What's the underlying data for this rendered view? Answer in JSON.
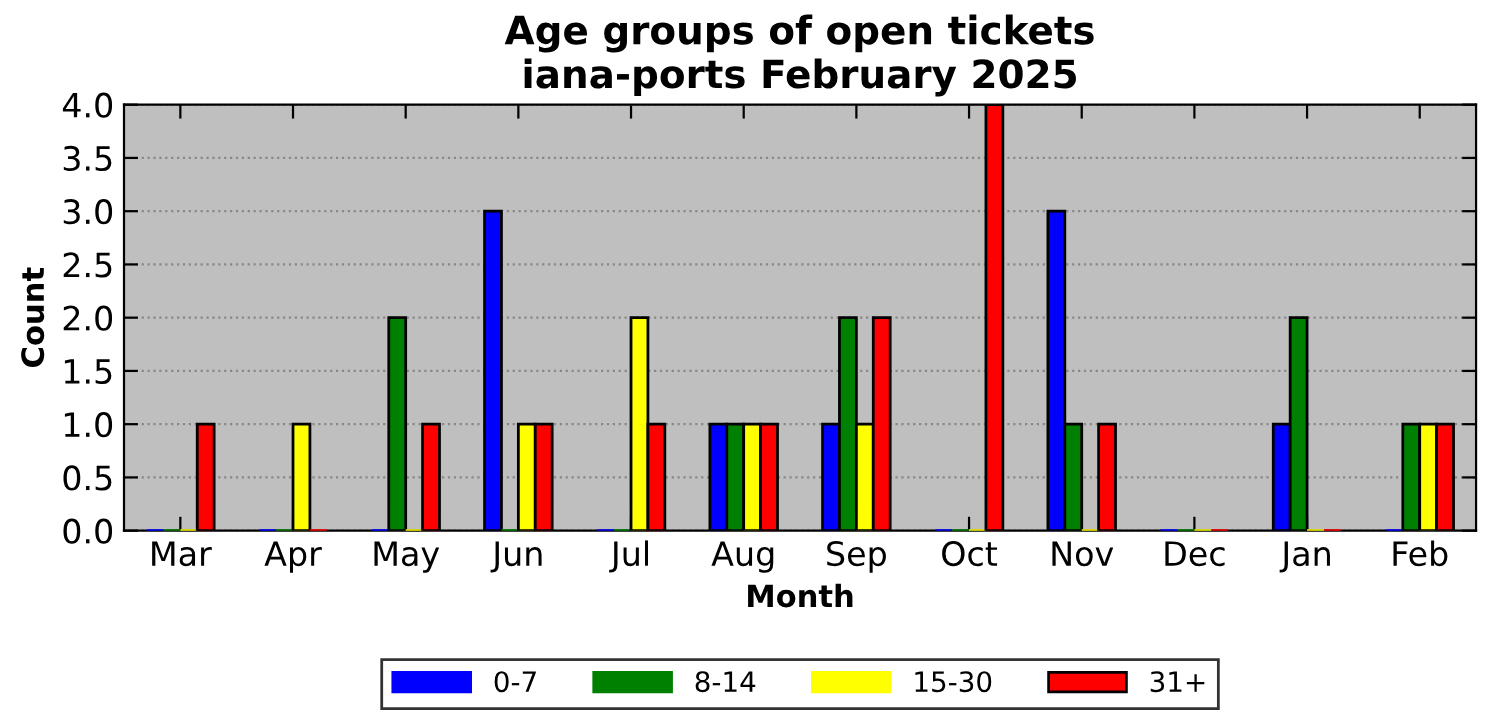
{
  "chart_data": {
    "type": "bar",
    "title": "Age groups of open tickets\niana-ports February 2025",
    "xlabel": "Month",
    "ylabel": "Count",
    "categories": [
      "Mar",
      "Apr",
      "May",
      "Jun",
      "Jul",
      "Aug",
      "Sep",
      "Oct",
      "Nov",
      "Dec",
      "Jan",
      "Feb"
    ],
    "series": [
      {
        "name": "0-7",
        "color": "#0000ff",
        "values": [
          0,
          0,
          0,
          3,
          0,
          1,
          1,
          0,
          3,
          0,
          1,
          0
        ]
      },
      {
        "name": "8-14",
        "color": "#008000",
        "values": [
          0,
          0,
          2,
          0,
          0,
          1,
          2,
          0,
          1,
          0,
          2,
          1
        ]
      },
      {
        "name": "15-30",
        "color": "#ffff00",
        "values": [
          0,
          1,
          0,
          1,
          2,
          1,
          1,
          0,
          0,
          0,
          0,
          1
        ]
      },
      {
        "name": "31+",
        "color": "#ff0000",
        "values": [
          1,
          0,
          1,
          1,
          1,
          1,
          2,
          4,
          1,
          0,
          0,
          1
        ]
      }
    ],
    "ylim": [
      0,
      4
    ],
    "yticks": [
      {
        "value": 0,
        "label": "0.0"
      },
      {
        "value": 0.5,
        "label": "0.5"
      },
      {
        "value": 1,
        "label": "1.0"
      },
      {
        "value": 1.5,
        "label": "1.5"
      },
      {
        "value": 2,
        "label": "2.0"
      },
      {
        "value": 2.5,
        "label": "2.5"
      },
      {
        "value": 3,
        "label": "3.0"
      },
      {
        "value": 3.5,
        "label": "3.5"
      },
      {
        "value": 4,
        "label": "4.0"
      }
    ],
    "grid": "y",
    "legend": "bottom"
  }
}
